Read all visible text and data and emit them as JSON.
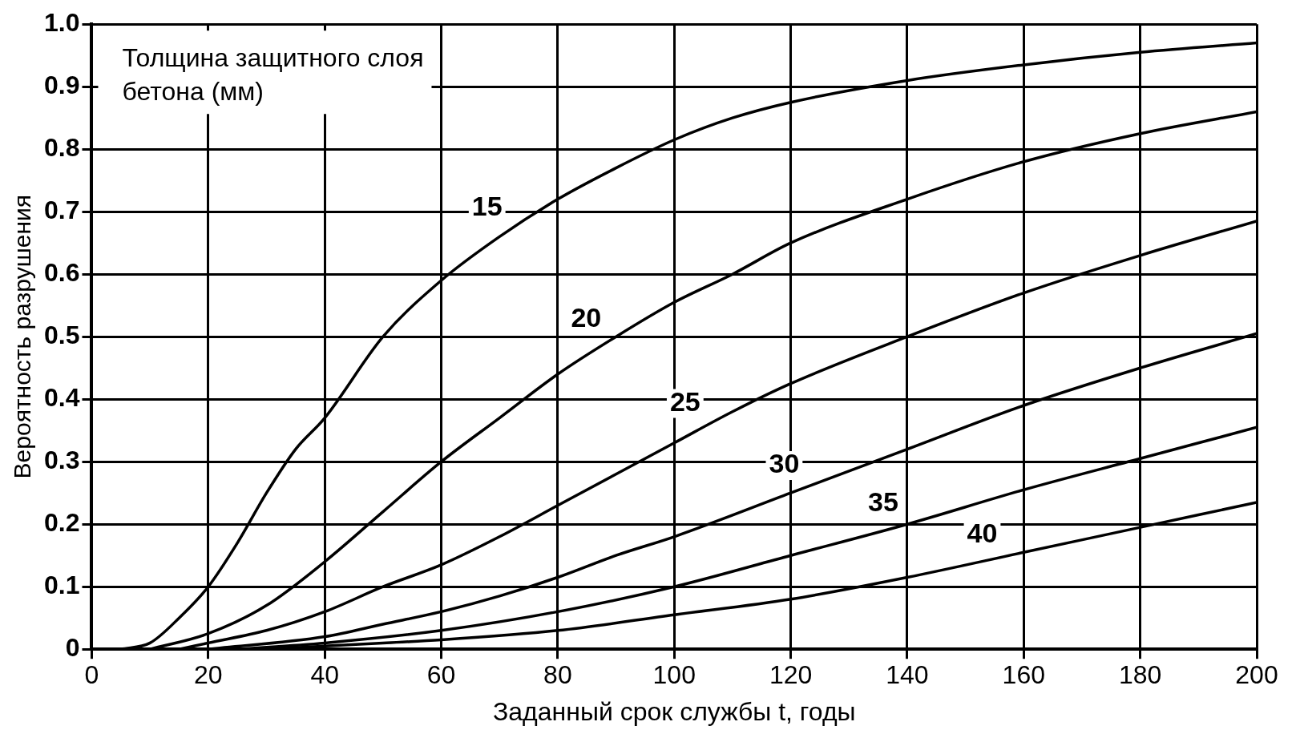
{
  "chart_data": {
    "type": "line",
    "xlabel": "Заданный срок службы t, годы",
    "ylabel": "Вероятность разрушения",
    "legend_title": "Толщина защитного слоя бетона (мм)",
    "xlim": [
      0,
      200
    ],
    "ylim": [
      0,
      1
    ],
    "xticks": [
      0,
      20,
      40,
      60,
      80,
      100,
      120,
      140,
      160,
      180,
      200
    ],
    "yticks": [
      0,
      {
        "value": 0.1,
        "label": "0.1"
      },
      {
        "value": 0.2,
        "label": "0.2"
      },
      {
        "value": 0.3,
        "label": "0.3"
      },
      {
        "value": 0.4,
        "label": "0.4"
      },
      {
        "value": 0.5,
        "label": "0.5"
      },
      {
        "value": 0.6,
        "label": "0.6"
      },
      {
        "value": 0.7,
        "label": "0.7"
      },
      {
        "value": 0.8,
        "label": "0.8"
      },
      {
        "value": 0.9,
        "label": "0.9"
      },
      {
        "value": 1,
        "label": "1.0"
      }
    ],
    "grid": true,
    "legend": false,
    "marker": "none",
    "line_style": "solid",
    "series": [
      {
        "name": "15",
        "color": "#000000",
        "x": [
          5,
          10,
          15,
          20,
          25,
          30,
          35,
          40,
          50,
          60,
          70,
          80,
          90,
          100,
          110,
          120,
          140,
          160,
          180,
          200
        ],
        "values": [
          0,
          0.01,
          0.05,
          0.1,
          0.17,
          0.25,
          0.32,
          0.37,
          0.5,
          0.59,
          0.66,
          0.72,
          0.77,
          0.815,
          0.85,
          0.875,
          0.91,
          0.935,
          0.955,
          0.97
        ]
      },
      {
        "name": "20",
        "color": "#000000",
        "x": [
          10,
          20,
          30,
          40,
          50,
          60,
          70,
          80,
          90,
          100,
          110,
          120,
          140,
          160,
          180,
          200
        ],
        "values": [
          0,
          0.025,
          0.07,
          0.14,
          0.22,
          0.3,
          0.37,
          0.44,
          0.5,
          0.555,
          0.6,
          0.65,
          0.72,
          0.78,
          0.825,
          0.86
        ]
      },
      {
        "name": "25",
        "color": "#000000",
        "x": [
          15,
          20,
          30,
          40,
          50,
          60,
          70,
          80,
          90,
          100,
          110,
          120,
          140,
          160,
          180,
          200
        ],
        "values": [
          0,
          0.01,
          0.03,
          0.06,
          0.1,
          0.135,
          0.18,
          0.23,
          0.28,
          0.33,
          0.38,
          0.425,
          0.5,
          0.57,
          0.63,
          0.685
        ]
      },
      {
        "name": "30",
        "color": "#000000",
        "x": [
          20,
          40,
          50,
          60,
          70,
          80,
          90,
          100,
          120,
          140,
          160,
          180,
          200
        ],
        "values": [
          0,
          0.02,
          0.04,
          0.06,
          0.085,
          0.115,
          0.15,
          0.18,
          0.25,
          0.32,
          0.39,
          0.45,
          0.505
        ]
      },
      {
        "name": "35",
        "color": "#000000",
        "x": [
          25,
          40,
          60,
          80,
          100,
          120,
          140,
          160,
          180,
          200
        ],
        "values": [
          0,
          0.01,
          0.03,
          0.06,
          0.1,
          0.15,
          0.2,
          0.255,
          0.305,
          0.355
        ]
      },
      {
        "name": "40",
        "color": "#000000",
        "x": [
          30,
          50,
          60,
          80,
          100,
          120,
          140,
          160,
          180,
          200
        ],
        "values": [
          0,
          0.01,
          0.015,
          0.03,
          0.055,
          0.08,
          0.115,
          0.155,
          0.195,
          0.235
        ]
      }
    ]
  }
}
